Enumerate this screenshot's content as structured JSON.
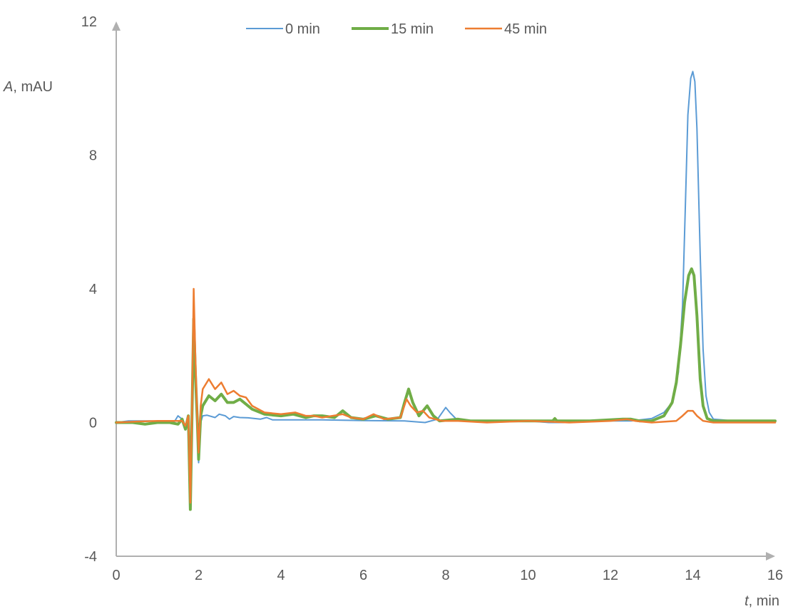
{
  "chart_data": {
    "type": "line",
    "xlabel": {
      "italic": "t",
      "rest": ", min"
    },
    "ylabel": {
      "italic": "A",
      "rest": ", mAU"
    },
    "xlim": [
      0,
      16
    ],
    "ylim": [
      -4,
      12
    ],
    "x_ticks": [
      "0",
      "2",
      "4",
      "6",
      "8",
      "10",
      "12",
      "14",
      "16"
    ],
    "y_ticks": [
      "12",
      "8",
      "4",
      "0",
      "-4"
    ],
    "grid": false,
    "legend_position": "top",
    "series": [
      {
        "name": "0 min",
        "color": "#5b9bd5",
        "line_width": 2,
        "points": [
          [
            0,
            0
          ],
          [
            0.3,
            0.05
          ],
          [
            0.8,
            0.05
          ],
          [
            1.2,
            0.03
          ],
          [
            1.4,
            0.0
          ],
          [
            1.5,
            0.2
          ],
          [
            1.6,
            0.1
          ],
          [
            1.68,
            -0.2
          ],
          [
            1.75,
            0.2
          ],
          [
            1.8,
            -1.5
          ],
          [
            1.84,
            0.5
          ],
          [
            1.88,
            3.2
          ],
          [
            1.92,
            1.5
          ],
          [
            1.97,
            -0.3
          ],
          [
            2.0,
            -1.2
          ],
          [
            2.05,
            0.0
          ],
          [
            2.1,
            0.2
          ],
          [
            2.2,
            0.22
          ],
          [
            2.4,
            0.15
          ],
          [
            2.5,
            0.25
          ],
          [
            2.65,
            0.2
          ],
          [
            2.75,
            0.1
          ],
          [
            2.85,
            0.18
          ],
          [
            3.0,
            0.15
          ],
          [
            3.2,
            0.14
          ],
          [
            3.5,
            0.1
          ],
          [
            3.65,
            0.15
          ],
          [
            3.8,
            0.08
          ],
          [
            4.2,
            0.08
          ],
          [
            5.0,
            0.08
          ],
          [
            6.0,
            0.06
          ],
          [
            7.0,
            0.05
          ],
          [
            7.5,
            0.0
          ],
          [
            7.8,
            0.1
          ],
          [
            8.0,
            0.45
          ],
          [
            8.1,
            0.3
          ],
          [
            8.3,
            0.05
          ],
          [
            9.0,
            0.05
          ],
          [
            10.0,
            0.05
          ],
          [
            10.5,
            0.0
          ],
          [
            11.0,
            0.0
          ],
          [
            11.8,
            0.05
          ],
          [
            12.5,
            0.05
          ],
          [
            13.0,
            0.12
          ],
          [
            13.3,
            0.3
          ],
          [
            13.5,
            0.6
          ],
          [
            13.65,
            1.5
          ],
          [
            13.75,
            3.5
          ],
          [
            13.82,
            6.5
          ],
          [
            13.88,
            9.2
          ],
          [
            13.95,
            10.3
          ],
          [
            14.0,
            10.5
          ],
          [
            14.05,
            10.2
          ],
          [
            14.1,
            8.8
          ],
          [
            14.18,
            5.0
          ],
          [
            14.25,
            2.2
          ],
          [
            14.32,
            0.8
          ],
          [
            14.4,
            0.3
          ],
          [
            14.5,
            0.1
          ],
          [
            15.0,
            0.05
          ],
          [
            16.0,
            0.05
          ]
        ]
      },
      {
        "name": "15 min",
        "color": "#70ad47",
        "line_width": 4,
        "points": [
          [
            0,
            0
          ],
          [
            0.4,
            0.0
          ],
          [
            0.7,
            -0.05
          ],
          [
            1.0,
            0.0
          ],
          [
            1.3,
            0.0
          ],
          [
            1.5,
            -0.05
          ],
          [
            1.6,
            0.1
          ],
          [
            1.68,
            -0.2
          ],
          [
            1.75,
            0.2
          ],
          [
            1.8,
            -2.6
          ],
          [
            1.84,
            0.3
          ],
          [
            1.88,
            3.1
          ],
          [
            1.92,
            1.5
          ],
          [
            1.97,
            0.0
          ],
          [
            2.0,
            -1.1
          ],
          [
            2.05,
            0.2
          ],
          [
            2.1,
            0.5
          ],
          [
            2.25,
            0.8
          ],
          [
            2.4,
            0.65
          ],
          [
            2.55,
            0.85
          ],
          [
            2.7,
            0.6
          ],
          [
            2.85,
            0.6
          ],
          [
            3.0,
            0.7
          ],
          [
            3.15,
            0.55
          ],
          [
            3.3,
            0.4
          ],
          [
            3.6,
            0.25
          ],
          [
            4.0,
            0.2
          ],
          [
            4.3,
            0.25
          ],
          [
            4.6,
            0.15
          ],
          [
            4.8,
            0.2
          ],
          [
            5.0,
            0.2
          ],
          [
            5.3,
            0.15
          ],
          [
            5.5,
            0.35
          ],
          [
            5.7,
            0.15
          ],
          [
            6.0,
            0.1
          ],
          [
            6.3,
            0.2
          ],
          [
            6.6,
            0.1
          ],
          [
            6.9,
            0.15
          ],
          [
            7.0,
            0.6
          ],
          [
            7.1,
            1.0
          ],
          [
            7.2,
            0.6
          ],
          [
            7.35,
            0.2
          ],
          [
            7.55,
            0.5
          ],
          [
            7.7,
            0.2
          ],
          [
            7.85,
            0.05
          ],
          [
            8.3,
            0.1
          ],
          [
            8.6,
            0.05
          ],
          [
            9.0,
            0.05
          ],
          [
            10.0,
            0.05
          ],
          [
            10.6,
            0.05
          ],
          [
            10.65,
            0.12
          ],
          [
            10.7,
            0.05
          ],
          [
            11.5,
            0.05
          ],
          [
            12.3,
            0.1
          ],
          [
            12.5,
            0.1
          ],
          [
            12.7,
            0.05
          ],
          [
            13.0,
            0.05
          ],
          [
            13.3,
            0.2
          ],
          [
            13.5,
            0.6
          ],
          [
            13.6,
            1.2
          ],
          [
            13.7,
            2.3
          ],
          [
            13.8,
            3.6
          ],
          [
            13.9,
            4.4
          ],
          [
            13.97,
            4.6
          ],
          [
            14.03,
            4.4
          ],
          [
            14.1,
            3.2
          ],
          [
            14.18,
            1.3
          ],
          [
            14.25,
            0.5
          ],
          [
            14.35,
            0.12
          ],
          [
            14.5,
            0.05
          ],
          [
            15.0,
            0.05
          ],
          [
            16.0,
            0.05
          ]
        ]
      },
      {
        "name": "45 min",
        "color": "#ed7d31",
        "line_width": 2.5,
        "points": [
          [
            0,
            0
          ],
          [
            0.5,
            0.03
          ],
          [
            1.0,
            0.05
          ],
          [
            1.4,
            0.05
          ],
          [
            1.6,
            0.05
          ],
          [
            1.68,
            -0.1
          ],
          [
            1.75,
            0.2
          ],
          [
            1.8,
            -2.4
          ],
          [
            1.84,
            0.5
          ],
          [
            1.88,
            4.0
          ],
          [
            1.92,
            2.0
          ],
          [
            1.97,
            0.0
          ],
          [
            2.0,
            -0.9
          ],
          [
            2.05,
            0.5
          ],
          [
            2.1,
            1.0
          ],
          [
            2.25,
            1.3
          ],
          [
            2.4,
            1.0
          ],
          [
            2.55,
            1.2
          ],
          [
            2.7,
            0.85
          ],
          [
            2.85,
            0.95
          ],
          [
            3.0,
            0.8
          ],
          [
            3.15,
            0.75
          ],
          [
            3.3,
            0.5
          ],
          [
            3.6,
            0.3
          ],
          [
            4.0,
            0.25
          ],
          [
            4.35,
            0.3
          ],
          [
            4.6,
            0.2
          ],
          [
            4.8,
            0.2
          ],
          [
            5.0,
            0.15
          ],
          [
            5.5,
            0.25
          ],
          [
            5.7,
            0.15
          ],
          [
            6.0,
            0.1
          ],
          [
            6.25,
            0.25
          ],
          [
            6.5,
            0.1
          ],
          [
            6.9,
            0.15
          ],
          [
            7.05,
            0.7
          ],
          [
            7.15,
            0.5
          ],
          [
            7.3,
            0.3
          ],
          [
            7.45,
            0.35
          ],
          [
            7.6,
            0.15
          ],
          [
            7.9,
            0.05
          ],
          [
            8.3,
            0.05
          ],
          [
            9.0,
            0.0
          ],
          [
            10.0,
            0.05
          ],
          [
            11.0,
            0.0
          ],
          [
            12.0,
            0.05
          ],
          [
            12.4,
            0.1
          ],
          [
            12.6,
            0.05
          ],
          [
            13.0,
            0.0
          ],
          [
            13.6,
            0.05
          ],
          [
            13.75,
            0.2
          ],
          [
            13.88,
            0.35
          ],
          [
            14.0,
            0.35
          ],
          [
            14.1,
            0.2
          ],
          [
            14.25,
            0.05
          ],
          [
            14.5,
            0.0
          ],
          [
            15.0,
            0.0
          ],
          [
            16.0,
            0.0
          ]
        ]
      }
    ]
  }
}
